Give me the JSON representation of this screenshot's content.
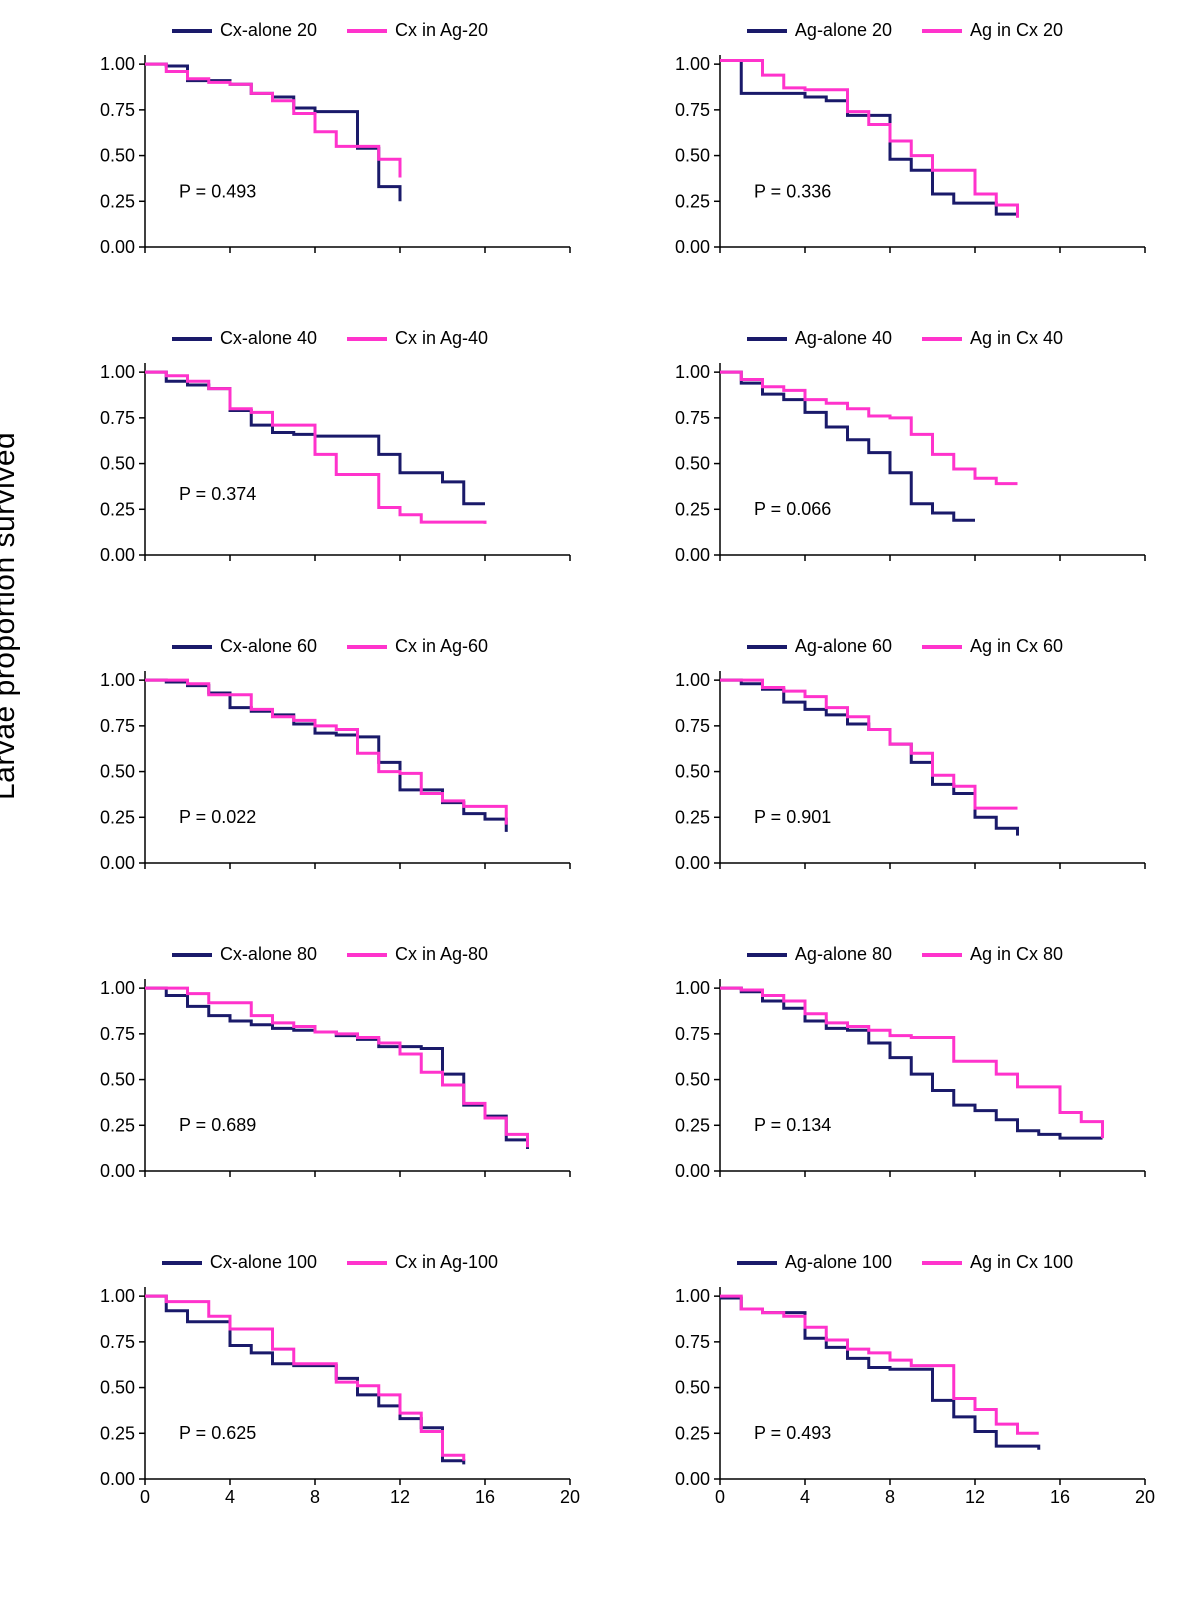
{
  "global": {
    "ylabel": "Larvae proportion survived",
    "x_ticks": [
      0,
      4,
      8,
      12,
      16,
      20
    ],
    "y_ticks": [
      0.0,
      0.25,
      0.5,
      0.75,
      1.0
    ],
    "y_tick_labels": [
      "0.00",
      "0.25",
      "0.50",
      "0.75",
      "1.00"
    ],
    "xlim": [
      0,
      20
    ],
    "ylim": [
      0.0,
      1.05
    ],
    "axis_color": "#000000",
    "tick_fontsize": 18,
    "label_fontsize": 30,
    "line_width": 3,
    "series1_color": "#1a1a6a",
    "series2_color": "#ff33cc",
    "background": "#ffffff",
    "p_prefix": "P = "
  },
  "panels": [
    {
      "legend": [
        "Cx-alone 20",
        "Cx in Ag-20"
      ],
      "p": "0.493",
      "p_x": 1.6,
      "p_y": 0.27,
      "series1": [
        [
          0,
          1.0
        ],
        [
          1,
          0.99
        ],
        [
          2,
          0.91
        ],
        [
          3,
          0.91
        ],
        [
          4,
          0.89
        ],
        [
          5,
          0.84
        ],
        [
          6,
          0.82
        ],
        [
          7,
          0.76
        ],
        [
          8,
          0.74
        ],
        [
          9,
          0.74
        ],
        [
          10,
          0.54
        ],
        [
          11,
          0.33
        ],
        [
          12,
          0.25
        ]
      ],
      "series2": [
        [
          0,
          1.0
        ],
        [
          1,
          0.96
        ],
        [
          2,
          0.92
        ],
        [
          3,
          0.9
        ],
        [
          4,
          0.89
        ],
        [
          5,
          0.84
        ],
        [
          6,
          0.8
        ],
        [
          7,
          0.73
        ],
        [
          8,
          0.63
        ],
        [
          9,
          0.55
        ],
        [
          10,
          0.55
        ],
        [
          11,
          0.48
        ],
        [
          12,
          0.38
        ]
      ]
    },
    {
      "legend": [
        "Ag-alone 20",
        "Ag in Cx 20"
      ],
      "p": "0.336",
      "p_x": 1.6,
      "p_y": 0.27,
      "series1": [
        [
          0,
          1.02
        ],
        [
          1,
          0.84
        ],
        [
          2,
          0.84
        ],
        [
          3,
          0.84
        ],
        [
          4,
          0.82
        ],
        [
          5,
          0.8
        ],
        [
          6,
          0.72
        ],
        [
          7,
          0.72
        ],
        [
          8,
          0.48
        ],
        [
          9,
          0.42
        ],
        [
          10,
          0.29
        ],
        [
          11,
          0.24
        ],
        [
          12,
          0.24
        ],
        [
          13,
          0.18
        ],
        [
          14,
          0.18
        ]
      ],
      "series2": [
        [
          0,
          1.02
        ],
        [
          1,
          1.02
        ],
        [
          2,
          0.94
        ],
        [
          3,
          0.87
        ],
        [
          4,
          0.86
        ],
        [
          5,
          0.86
        ],
        [
          6,
          0.74
        ],
        [
          7,
          0.67
        ],
        [
          8,
          0.58
        ],
        [
          9,
          0.5
        ],
        [
          10,
          0.42
        ],
        [
          11,
          0.42
        ],
        [
          12,
          0.29
        ],
        [
          13,
          0.23
        ],
        [
          14,
          0.16
        ]
      ]
    },
    {
      "legend": [
        "Cx-alone 40",
        "Cx in Ag-40"
      ],
      "p": "0.374",
      "p_x": 1.6,
      "p_y": 0.3,
      "series1": [
        [
          0,
          1.0
        ],
        [
          1,
          0.95
        ],
        [
          2,
          0.93
        ],
        [
          3,
          0.91
        ],
        [
          4,
          0.79
        ],
        [
          5,
          0.71
        ],
        [
          6,
          0.67
        ],
        [
          7,
          0.66
        ],
        [
          8,
          0.65
        ],
        [
          9,
          0.65
        ],
        [
          10,
          0.65
        ],
        [
          11,
          0.55
        ],
        [
          12,
          0.45
        ],
        [
          13,
          0.45
        ],
        [
          14,
          0.4
        ],
        [
          15,
          0.28
        ],
        [
          16,
          0.28
        ]
      ],
      "series2": [
        [
          0,
          1.0
        ],
        [
          1,
          0.98
        ],
        [
          2,
          0.95
        ],
        [
          3,
          0.91
        ],
        [
          4,
          0.8
        ],
        [
          5,
          0.78
        ],
        [
          6,
          0.71
        ],
        [
          7,
          0.71
        ],
        [
          8,
          0.55
        ],
        [
          9,
          0.44
        ],
        [
          10,
          0.44
        ],
        [
          11,
          0.26
        ],
        [
          12,
          0.22
        ],
        [
          13,
          0.18
        ],
        [
          14,
          0.18
        ],
        [
          15,
          0.18
        ],
        [
          16,
          0.17
        ]
      ]
    },
    {
      "legend": [
        "Ag-alone 40",
        "Ag in Cx 40"
      ],
      "p": "0.066",
      "p_x": 1.6,
      "p_y": 0.22,
      "series1": [
        [
          0,
          1.0
        ],
        [
          1,
          0.94
        ],
        [
          2,
          0.88
        ],
        [
          3,
          0.85
        ],
        [
          4,
          0.78
        ],
        [
          5,
          0.7
        ],
        [
          6,
          0.63
        ],
        [
          7,
          0.56
        ],
        [
          8,
          0.45
        ],
        [
          9,
          0.28
        ],
        [
          10,
          0.23
        ],
        [
          11,
          0.19
        ],
        [
          12,
          0.19
        ]
      ],
      "series2": [
        [
          0,
          1.0
        ],
        [
          1,
          0.96
        ],
        [
          2,
          0.92
        ],
        [
          3,
          0.9
        ],
        [
          4,
          0.85
        ],
        [
          5,
          0.83
        ],
        [
          6,
          0.8
        ],
        [
          7,
          0.76
        ],
        [
          8,
          0.75
        ],
        [
          9,
          0.66
        ],
        [
          10,
          0.55
        ],
        [
          11,
          0.47
        ],
        [
          12,
          0.42
        ],
        [
          13,
          0.39
        ],
        [
          14,
          0.39
        ]
      ]
    },
    {
      "legend": [
        "Cx-alone 60",
        "Cx in Ag-60"
      ],
      "p": "0.022",
      "p_x": 1.6,
      "p_y": 0.22,
      "series1": [
        [
          0,
          1.0
        ],
        [
          1,
          0.99
        ],
        [
          2,
          0.97
        ],
        [
          3,
          0.93
        ],
        [
          4,
          0.85
        ],
        [
          5,
          0.83
        ],
        [
          6,
          0.81
        ],
        [
          7,
          0.76
        ],
        [
          8,
          0.71
        ],
        [
          9,
          0.7
        ],
        [
          10,
          0.69
        ],
        [
          11,
          0.55
        ],
        [
          12,
          0.4
        ],
        [
          13,
          0.4
        ],
        [
          14,
          0.33
        ],
        [
          15,
          0.27
        ],
        [
          16,
          0.24
        ],
        [
          17,
          0.17
        ]
      ],
      "series2": [
        [
          0,
          1.0
        ],
        [
          1,
          1.0
        ],
        [
          2,
          0.98
        ],
        [
          3,
          0.92
        ],
        [
          4,
          0.92
        ],
        [
          5,
          0.84
        ],
        [
          6,
          0.8
        ],
        [
          7,
          0.78
        ],
        [
          8,
          0.75
        ],
        [
          9,
          0.73
        ],
        [
          10,
          0.6
        ],
        [
          11,
          0.5
        ],
        [
          12,
          0.49
        ],
        [
          13,
          0.38
        ],
        [
          14,
          0.34
        ],
        [
          15,
          0.31
        ],
        [
          16,
          0.31
        ],
        [
          17,
          0.21
        ]
      ]
    },
    {
      "legend": [
        "Ag-alone 60",
        "Ag in Cx 60"
      ],
      "p": "0.901",
      "p_x": 1.6,
      "p_y": 0.22,
      "series1": [
        [
          0,
          1.0
        ],
        [
          1,
          0.98
        ],
        [
          2,
          0.95
        ],
        [
          3,
          0.88
        ],
        [
          4,
          0.84
        ],
        [
          5,
          0.81
        ],
        [
          6,
          0.76
        ],
        [
          7,
          0.73
        ],
        [
          8,
          0.65
        ],
        [
          9,
          0.55
        ],
        [
          10,
          0.43
        ],
        [
          11,
          0.38
        ],
        [
          12,
          0.25
        ],
        [
          13,
          0.19
        ],
        [
          14,
          0.15
        ]
      ],
      "series2": [
        [
          0,
          1.0
        ],
        [
          1,
          1.0
        ],
        [
          2,
          0.96
        ],
        [
          3,
          0.94
        ],
        [
          4,
          0.91
        ],
        [
          5,
          0.85
        ],
        [
          6,
          0.8
        ],
        [
          7,
          0.73
        ],
        [
          8,
          0.65
        ],
        [
          9,
          0.6
        ],
        [
          10,
          0.48
        ],
        [
          11,
          0.42
        ],
        [
          12,
          0.3
        ],
        [
          13,
          0.3
        ],
        [
          14,
          0.3
        ]
      ]
    },
    {
      "legend": [
        "Cx-alone 80",
        "Cx in Ag-80"
      ],
      "p": "0.689",
      "p_x": 1.6,
      "p_y": 0.22,
      "series1": [
        [
          0,
          1.0
        ],
        [
          1,
          0.96
        ],
        [
          2,
          0.9
        ],
        [
          3,
          0.85
        ],
        [
          4,
          0.82
        ],
        [
          5,
          0.8
        ],
        [
          6,
          0.78
        ],
        [
          7,
          0.77
        ],
        [
          8,
          0.76
        ],
        [
          9,
          0.74
        ],
        [
          10,
          0.72
        ],
        [
          11,
          0.68
        ],
        [
          12,
          0.68
        ],
        [
          13,
          0.67
        ],
        [
          14,
          0.53
        ],
        [
          15,
          0.36
        ],
        [
          16,
          0.3
        ],
        [
          17,
          0.17
        ],
        [
          18,
          0.12
        ]
      ],
      "series2": [
        [
          0,
          1.0
        ],
        [
          1,
          1.0
        ],
        [
          2,
          0.97
        ],
        [
          3,
          0.92
        ],
        [
          4,
          0.92
        ],
        [
          5,
          0.85
        ],
        [
          6,
          0.81
        ],
        [
          7,
          0.79
        ],
        [
          8,
          0.76
        ],
        [
          9,
          0.75
        ],
        [
          10,
          0.73
        ],
        [
          11,
          0.7
        ],
        [
          12,
          0.64
        ],
        [
          13,
          0.54
        ],
        [
          14,
          0.47
        ],
        [
          15,
          0.37
        ],
        [
          16,
          0.29
        ],
        [
          17,
          0.2
        ],
        [
          18,
          0.13
        ]
      ]
    },
    {
      "legend": [
        "Ag-alone 80",
        "Ag in Cx 80"
      ],
      "p": "0.134",
      "p_x": 1.6,
      "p_y": 0.22,
      "series1": [
        [
          0,
          1.0
        ],
        [
          1,
          0.98
        ],
        [
          2,
          0.93
        ],
        [
          3,
          0.89
        ],
        [
          4,
          0.82
        ],
        [
          5,
          0.78
        ],
        [
          6,
          0.77
        ],
        [
          7,
          0.7
        ],
        [
          8,
          0.62
        ],
        [
          9,
          0.53
        ],
        [
          10,
          0.44
        ],
        [
          11,
          0.36
        ],
        [
          12,
          0.33
        ],
        [
          13,
          0.28
        ],
        [
          14,
          0.22
        ],
        [
          15,
          0.2
        ],
        [
          16,
          0.18
        ],
        [
          17,
          0.18
        ],
        [
          18,
          0.18
        ]
      ],
      "series2": [
        [
          0,
          1.0
        ],
        [
          1,
          0.99
        ],
        [
          2,
          0.96
        ],
        [
          3,
          0.93
        ],
        [
          4,
          0.86
        ],
        [
          5,
          0.81
        ],
        [
          6,
          0.79
        ],
        [
          7,
          0.77
        ],
        [
          8,
          0.74
        ],
        [
          9,
          0.73
        ],
        [
          10,
          0.73
        ],
        [
          11,
          0.6
        ],
        [
          12,
          0.6
        ],
        [
          13,
          0.53
        ],
        [
          14,
          0.46
        ],
        [
          15,
          0.46
        ],
        [
          16,
          0.32
        ],
        [
          17,
          0.27
        ],
        [
          18,
          0.18
        ]
      ]
    },
    {
      "legend": [
        "Cx-alone 100",
        "Cx in Ag-100"
      ],
      "p": "0.625",
      "p_x": 1.6,
      "p_y": 0.22,
      "series1": [
        [
          0,
          1.0
        ],
        [
          1,
          0.92
        ],
        [
          2,
          0.86
        ],
        [
          3,
          0.86
        ],
        [
          4,
          0.73
        ],
        [
          5,
          0.69
        ],
        [
          6,
          0.63
        ],
        [
          7,
          0.62
        ],
        [
          8,
          0.62
        ],
        [
          9,
          0.55
        ],
        [
          10,
          0.46
        ],
        [
          11,
          0.4
        ],
        [
          12,
          0.33
        ],
        [
          13,
          0.28
        ],
        [
          14,
          0.1
        ],
        [
          15,
          0.08
        ]
      ],
      "series2": [
        [
          0,
          1.0
        ],
        [
          1,
          0.97
        ],
        [
          2,
          0.97
        ],
        [
          3,
          0.89
        ],
        [
          4,
          0.82
        ],
        [
          5,
          0.82
        ],
        [
          6,
          0.71
        ],
        [
          7,
          0.63
        ],
        [
          8,
          0.63
        ],
        [
          9,
          0.53
        ],
        [
          10,
          0.51
        ],
        [
          11,
          0.46
        ],
        [
          12,
          0.36
        ],
        [
          13,
          0.26
        ],
        [
          14,
          0.13
        ],
        [
          15,
          0.1
        ]
      ]
    },
    {
      "legend": [
        "Ag-alone  100",
        "Ag in Cx 100"
      ],
      "p": "0.493",
      "p_x": 1.6,
      "p_y": 0.22,
      "series1": [
        [
          0,
          0.99
        ],
        [
          1,
          0.93
        ],
        [
          2,
          0.91
        ],
        [
          3,
          0.91
        ],
        [
          4,
          0.77
        ],
        [
          5,
          0.72
        ],
        [
          6,
          0.66
        ],
        [
          7,
          0.61
        ],
        [
          8,
          0.6
        ],
        [
          9,
          0.6
        ],
        [
          10,
          0.43
        ],
        [
          11,
          0.34
        ],
        [
          12,
          0.26
        ],
        [
          13,
          0.18
        ],
        [
          14,
          0.18
        ],
        [
          15,
          0.16
        ]
      ],
      "series2": [
        [
          0,
          1.0
        ],
        [
          1,
          0.93
        ],
        [
          2,
          0.91
        ],
        [
          3,
          0.89
        ],
        [
          4,
          0.83
        ],
        [
          5,
          0.76
        ],
        [
          6,
          0.71
        ],
        [
          7,
          0.69
        ],
        [
          8,
          0.65
        ],
        [
          9,
          0.62
        ],
        [
          10,
          0.62
        ],
        [
          11,
          0.44
        ],
        [
          12,
          0.38
        ],
        [
          13,
          0.3
        ],
        [
          14,
          0.25
        ],
        [
          15,
          0.25
        ]
      ]
    }
  ]
}
